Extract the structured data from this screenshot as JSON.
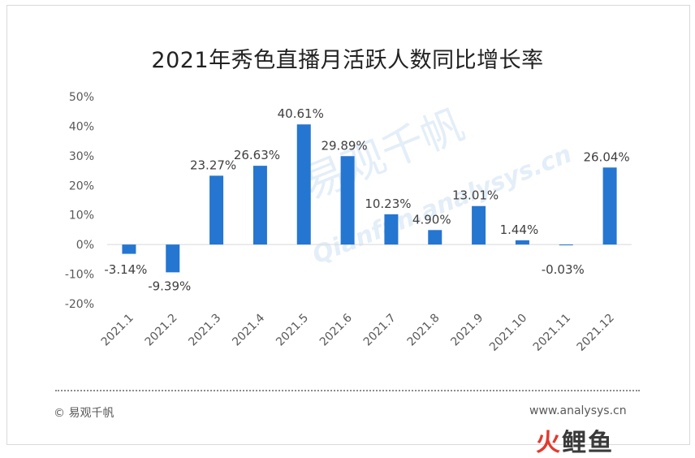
{
  "chart_data": {
    "type": "bar",
    "title": "2021年秀色直播月活跃人数同比增长率",
    "categories": [
      "2021.1",
      "2021.2",
      "2021.3",
      "2021.4",
      "2021.5",
      "2021.6",
      "2021.7",
      "2021.8",
      "2021.9",
      "2021.10",
      "2021.11",
      "2021.12"
    ],
    "values": [
      -3.14,
      -9.39,
      23.27,
      26.63,
      40.61,
      29.89,
      10.23,
      4.9,
      13.01,
      1.44,
      -0.03,
      26.04
    ],
    "value_labels": [
      "-3.14%",
      "-9.39%",
      "23.27%",
      "26.63%",
      "40.61%",
      "29.89%",
      "10.23%",
      "4.90%",
      "13.01%",
      "1.44%",
      "-0.03%",
      "26.04%"
    ],
    "yticks": [
      "50%",
      "40%",
      "30%",
      "20%",
      "10%",
      "0%",
      "-10%",
      "-20%"
    ],
    "ytick_values": [
      50,
      40,
      30,
      20,
      10,
      0,
      -10,
      -20
    ],
    "ylim": [
      -20,
      50
    ],
    "bar_color": "#2476d1",
    "grid": false,
    "legend": "none"
  },
  "footer": {
    "copyright": "© 易观千帆",
    "site": "www.analysys.cn"
  },
  "watermark": {
    "part1": "火",
    "part2": "鲤鱼",
    "bg_text": "易观千帆",
    "bg_text2": "Qianfan.analysys.cn"
  }
}
